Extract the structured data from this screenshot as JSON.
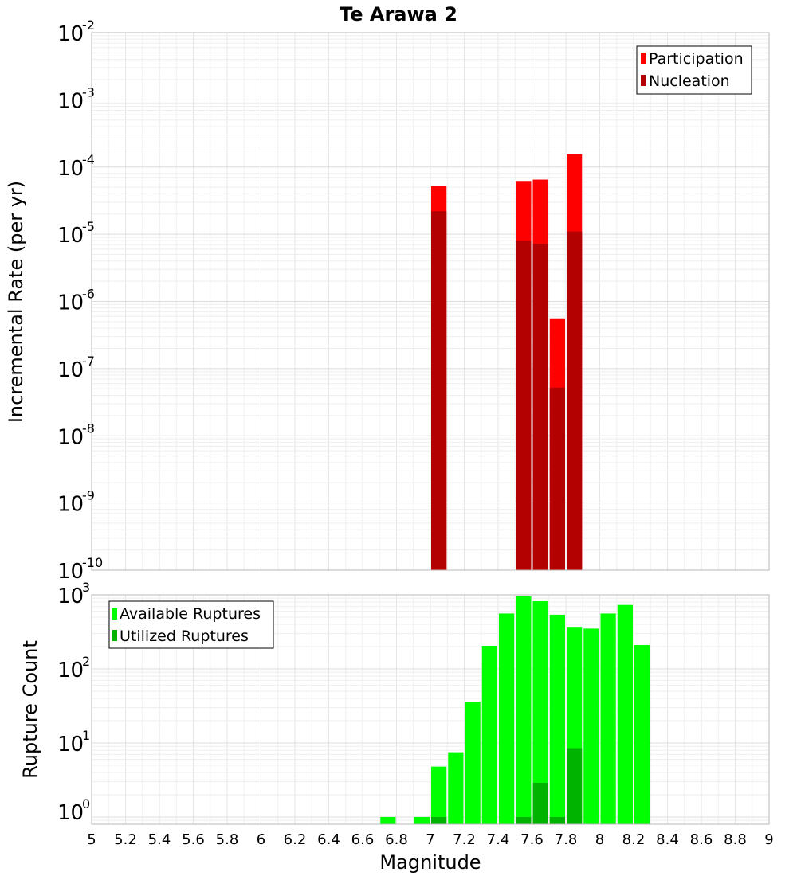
{
  "chart_data": [
    {
      "type": "bar",
      "title": "Te Arawa 2",
      "xlabel": "",
      "ylabel": "Incremental Rate (per yr)",
      "yscale": "log",
      "ylim": [
        1e-10,
        0.01
      ],
      "xlim": [
        5,
        9
      ],
      "bin_width": 0.1,
      "y_exponents": [
        -2,
        -3,
        -4,
        -5,
        -6,
        -7,
        -8,
        -9,
        -10
      ],
      "legend_position": "top-right",
      "series": [
        {
          "name": "Participation",
          "color": "#ff0000",
          "x": [
            7.05,
            7.55,
            7.65,
            7.75,
            7.85
          ],
          "values": [
            5.2e-05,
            6.2e-05,
            6.5e-05,
            5.6e-07,
            0.000155
          ]
        },
        {
          "name": "Nucleation",
          "color": "#b30000",
          "x": [
            7.05,
            7.55,
            7.65,
            7.75,
            7.85
          ],
          "values": [
            2.2e-05,
            8e-06,
            7.2e-06,
            5.2e-08,
            1.1e-05
          ]
        }
      ]
    },
    {
      "type": "bar",
      "title": "",
      "xlabel": "Magnitude",
      "ylabel": "Rupture Count",
      "yscale": "log",
      "ylim": [
        0.8,
        1000
      ],
      "xlim": [
        5,
        9
      ],
      "bin_width": 0.1,
      "y_exponents": [
        3,
        2,
        1,
        0
      ],
      "x_ticks": [
        "5",
        "5.2",
        "5.4",
        "5.6",
        "5.8",
        "6",
        "6.2",
        "6.4",
        "6.6",
        "6.8",
        "7",
        "7.2",
        "7.4",
        "7.6",
        "7.8",
        "8",
        "8.2",
        "8.4",
        "8.6",
        "8.8",
        "9"
      ],
      "legend_position": "top-left",
      "series": [
        {
          "name": "Available Ruptures",
          "color": "#00ff00",
          "x": [
            6.75,
            6.95,
            7.05,
            7.15,
            7.25,
            7.35,
            7.45,
            7.55,
            7.65,
            7.75,
            7.85,
            7.95,
            8.05,
            8.15,
            8.25
          ],
          "values": [
            1,
            1,
            4.8,
            7.5,
            36,
            205,
            560,
            960,
            820,
            540,
            370,
            350,
            560,
            730,
            210
          ]
        },
        {
          "name": "Utilized Ruptures",
          "color": "#00b300",
          "x": [
            7.05,
            7.55,
            7.65,
            7.75,
            7.85
          ],
          "values": [
            1,
            1,
            2.9,
            1,
            8.5
          ]
        }
      ]
    }
  ]
}
